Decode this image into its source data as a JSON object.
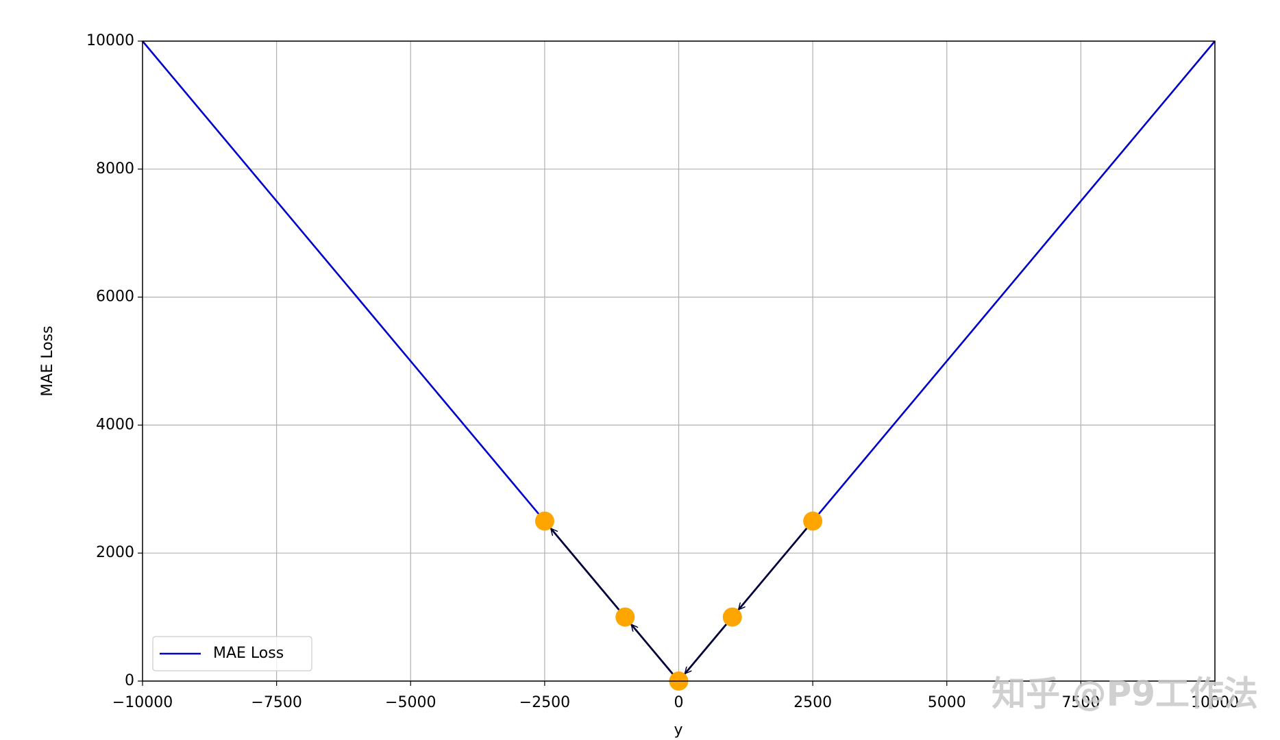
{
  "chart_data": {
    "type": "line",
    "xlabel": "y",
    "ylabel": "MAE Loss",
    "series": [
      {
        "name": "MAE Loss",
        "type": "line",
        "color": "#0000cc",
        "x": [
          -10000,
          0,
          10000
        ],
        "values": [
          10000,
          0,
          10000
        ]
      },
      {
        "type": "scatter",
        "color": "#ffa500",
        "x": [
          -2500,
          -1000,
          0,
          1000,
          2500
        ],
        "values": [
          2500,
          1000,
          0,
          1000,
          2500
        ]
      }
    ],
    "arrows": [
      {
        "x": [
          2500,
          1000
        ],
        "y": [
          2500,
          1000
        ]
      },
      {
        "x": [
          1000,
          0
        ],
        "y": [
          1000,
          0
        ]
      },
      {
        "x": [
          0,
          -1000
        ],
        "y": [
          0,
          1000
        ]
      },
      {
        "x": [
          -1000,
          -2500
        ],
        "y": [
          1000,
          2500
        ]
      }
    ],
    "arrow_color": "#000033",
    "xlim": [
      -10000,
      10000
    ],
    "ylim": [
      0,
      10000
    ],
    "xticks": [
      {
        "value": -10000,
        "label": "−10000"
      },
      {
        "value": -7500,
        "label": "−7500"
      },
      {
        "value": -5000,
        "label": "−5000"
      },
      {
        "value": -2500,
        "label": "−2500"
      },
      0,
      2500,
      5000,
      7500,
      10000
    ],
    "yticks": [
      0,
      2000,
      4000,
      6000,
      8000,
      10000
    ],
    "grid": true,
    "legend": "lower left",
    "watermark": "知乎 @P9工作法"
  }
}
